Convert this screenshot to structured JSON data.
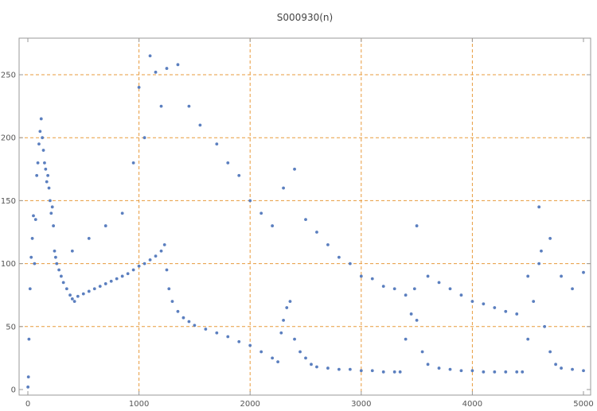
{
  "chart_data": {
    "type": "scatter",
    "title": "S000930(n)",
    "xlabel": "",
    "ylabel": "",
    "xlim": [
      0,
      5000
    ],
    "ylim": [
      0,
      275
    ],
    "x_ticks": [
      0,
      1000,
      2000,
      3000,
      4000,
      5000
    ],
    "y_ticks": [
      0,
      50,
      100,
      150,
      200,
      250
    ],
    "major_gridlines_x": [
      1000,
      2000,
      3000,
      4000
    ],
    "major_gridlines_y": [
      50,
      100,
      150,
      200,
      250
    ],
    "grid": true,
    "legend": "none",
    "colors": {
      "points": "#5b7fbf",
      "gridlines": "#e89b3c",
      "frame": "#999999"
    },
    "series": [
      {
        "values_description": "approx. 5000 points (n = 1..5000); representative sampled values below",
        "points": [
          [
            1,
            2
          ],
          [
            5,
            10
          ],
          [
            10,
            40
          ],
          [
            20,
            80
          ],
          [
            30,
            105
          ],
          [
            40,
            120
          ],
          [
            50,
            138
          ],
          [
            60,
            100
          ],
          [
            70,
            135
          ],
          [
            80,
            170
          ],
          [
            90,
            180
          ],
          [
            100,
            195
          ],
          [
            110,
            205
          ],
          [
            120,
            215
          ],
          [
            130,
            200
          ],
          [
            140,
            190
          ],
          [
            150,
            180
          ],
          [
            160,
            175
          ],
          [
            170,
            165
          ],
          [
            180,
            170
          ],
          [
            190,
            160
          ],
          [
            200,
            150
          ],
          [
            210,
            140
          ],
          [
            220,
            145
          ],
          [
            230,
            130
          ],
          [
            240,
            110
          ],
          [
            250,
            105
          ],
          [
            260,
            100
          ],
          [
            280,
            95
          ],
          [
            300,
            90
          ],
          [
            320,
            85
          ],
          [
            350,
            80
          ],
          [
            380,
            75
          ],
          [
            400,
            72
          ],
          [
            420,
            70
          ],
          [
            450,
            74
          ],
          [
            500,
            76
          ],
          [
            550,
            78
          ],
          [
            600,
            80
          ],
          [
            650,
            82
          ],
          [
            700,
            84
          ],
          [
            750,
            86
          ],
          [
            800,
            88
          ],
          [
            850,
            90
          ],
          [
            900,
            92
          ],
          [
            950,
            95
          ],
          [
            1000,
            98
          ],
          [
            1050,
            100
          ],
          [
            1100,
            103
          ],
          [
            1150,
            106
          ],
          [
            1200,
            110
          ],
          [
            1230,
            115
          ],
          [
            1250,
            95
          ],
          [
            1270,
            80
          ],
          [
            1300,
            70
          ],
          [
            1350,
            62
          ],
          [
            1400,
            57
          ],
          [
            1450,
            54
          ],
          [
            1500,
            51
          ],
          [
            1600,
            48
          ],
          [
            1700,
            45
          ],
          [
            1800,
            42
          ],
          [
            1900,
            38
          ],
          [
            2000,
            35
          ],
          [
            2100,
            30
          ],
          [
            2200,
            25
          ],
          [
            2250,
            22
          ],
          [
            2280,
            45
          ],
          [
            2300,
            55
          ],
          [
            2330,
            65
          ],
          [
            2360,
            70
          ],
          [
            2400,
            40
          ],
          [
            2450,
            30
          ],
          [
            2500,
            25
          ],
          [
            2550,
            20
          ],
          [
            2600,
            18
          ],
          [
            2700,
            17
          ],
          [
            2800,
            16
          ],
          [
            2900,
            16
          ],
          [
            3000,
            15
          ],
          [
            3100,
            15
          ],
          [
            3200,
            14
          ],
          [
            3300,
            14
          ],
          [
            3350,
            14
          ],
          [
            3400,
            40
          ],
          [
            3450,
            60
          ],
          [
            3480,
            80
          ],
          [
            3500,
            55
          ],
          [
            3550,
            30
          ],
          [
            3600,
            20
          ],
          [
            3700,
            17
          ],
          [
            3800,
            16
          ],
          [
            3900,
            15
          ],
          [
            4000,
            15
          ],
          [
            4100,
            14
          ],
          [
            4200,
            14
          ],
          [
            4300,
            14
          ],
          [
            4400,
            14
          ],
          [
            4450,
            14
          ],
          [
            4500,
            40
          ],
          [
            4550,
            70
          ],
          [
            4600,
            100
          ],
          [
            4620,
            110
          ],
          [
            4650,
            50
          ],
          [
            4700,
            30
          ],
          [
            4750,
            20
          ],
          [
            4800,
            17
          ],
          [
            4900,
            16
          ],
          [
            5000,
            15
          ],
          [
            400,
            110
          ],
          [
            550,
            120
          ],
          [
            700,
            130
          ],
          [
            850,
            140
          ],
          [
            950,
            180
          ],
          [
            1000,
            240
          ],
          [
            1050,
            200
          ],
          [
            1100,
            265
          ],
          [
            1150,
            252
          ],
          [
            1200,
            225
          ],
          [
            1250,
            255
          ],
          [
            1350,
            258
          ],
          [
            1450,
            225
          ],
          [
            1550,
            210
          ],
          [
            1700,
            195
          ],
          [
            1800,
            180
          ],
          [
            1900,
            170
          ],
          [
            2000,
            150
          ],
          [
            2100,
            140
          ],
          [
            2200,
            130
          ],
          [
            2300,
            160
          ],
          [
            2400,
            175
          ],
          [
            2500,
            135
          ],
          [
            2600,
            125
          ],
          [
            2700,
            115
          ],
          [
            2800,
            105
          ],
          [
            2900,
            100
          ],
          [
            3000,
            90
          ],
          [
            3100,
            88
          ],
          [
            3200,
            82
          ],
          [
            3300,
            80
          ],
          [
            3400,
            75
          ],
          [
            3500,
            130
          ],
          [
            3600,
            90
          ],
          [
            3700,
            85
          ],
          [
            3800,
            80
          ],
          [
            3900,
            75
          ],
          [
            4000,
            70
          ],
          [
            4100,
            68
          ],
          [
            4200,
            65
          ],
          [
            4300,
            62
          ],
          [
            4400,
            60
          ],
          [
            4500,
            90
          ],
          [
            4600,
            145
          ],
          [
            4700,
            120
          ],
          [
            4800,
            90
          ],
          [
            4900,
            80
          ],
          [
            5000,
            93
          ]
        ]
      }
    ]
  }
}
